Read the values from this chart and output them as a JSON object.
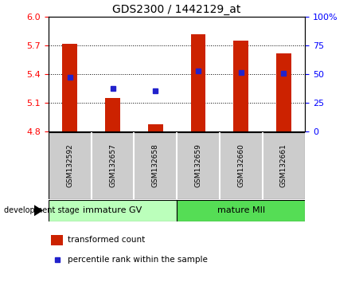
{
  "title": "GDS2300 / 1442129_at",
  "samples": [
    "GSM132592",
    "GSM132657",
    "GSM132658",
    "GSM132659",
    "GSM132660",
    "GSM132661"
  ],
  "bar_values": [
    5.72,
    5.15,
    4.87,
    5.82,
    5.75,
    5.62
  ],
  "bar_base": 4.8,
  "percentile_values_left": [
    5.37,
    5.25,
    5.22,
    5.43,
    5.42,
    5.41
  ],
  "ylim_left": [
    4.8,
    6.0
  ],
  "ylim_right": [
    0,
    100
  ],
  "yticks_left": [
    4.8,
    5.1,
    5.4,
    5.7,
    6.0
  ],
  "yticks_right": [
    0,
    25,
    50,
    75,
    100
  ],
  "ytick_labels_right": [
    "0",
    "25",
    "50",
    "75",
    "100%"
  ],
  "grid_values": [
    5.1,
    5.4,
    5.7
  ],
  "bar_color": "#cc2200",
  "percentile_color": "#2222cc",
  "group1_label": "immature GV",
  "group2_label": "mature MII",
  "group1_color": "#bbffbb",
  "group2_color": "#55dd55",
  "group1_indices": [
    0,
    1,
    2
  ],
  "group2_indices": [
    3,
    4,
    5
  ],
  "legend_bar_label": "transformed count",
  "legend_pct_label": "percentile rank within the sample",
  "dev_stage_label": "development stage",
  "bar_width": 0.35,
  "sample_box_color": "#cccccc",
  "title_fontsize": 10
}
